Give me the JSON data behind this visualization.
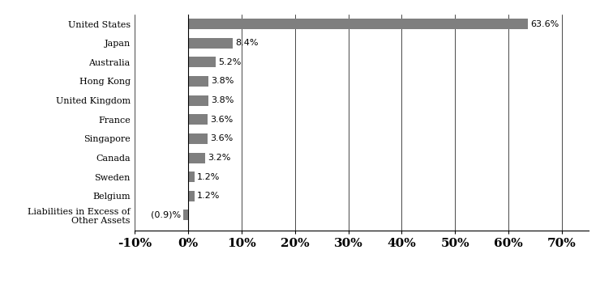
{
  "categories": [
    "United States",
    "Japan",
    "Australia",
    "Hong Kong",
    "United Kingdom",
    "France",
    "Singapore",
    "Canada",
    "Sweden",
    "Belgium",
    "Liabilities in Excess of\nOther Assets"
  ],
  "values": [
    63.6,
    8.4,
    5.2,
    3.8,
    3.8,
    3.6,
    3.6,
    3.2,
    1.2,
    1.2,
    -0.9
  ],
  "labels": [
    "63.6%",
    "8.4%",
    "5.2%",
    "3.8%",
    "3.8%",
    "3.6%",
    "3.6%",
    "3.2%",
    "1.2%",
    "1.2%",
    "(0.9)%"
  ],
  "bar_color": "#7f7f7f",
  "xlim": [
    -10,
    75
  ],
  "xticks": [
    -10,
    0,
    10,
    20,
    30,
    40,
    50,
    60,
    70
  ],
  "xtick_labels": [
    "-10%",
    "0%",
    "10%",
    "20%",
    "30%",
    "40%",
    "50%",
    "60%",
    "70%"
  ],
  "bar_height": 0.55,
  "label_fontsize": 8,
  "tick_fontsize": 8,
  "xtick_fontsize": 11
}
